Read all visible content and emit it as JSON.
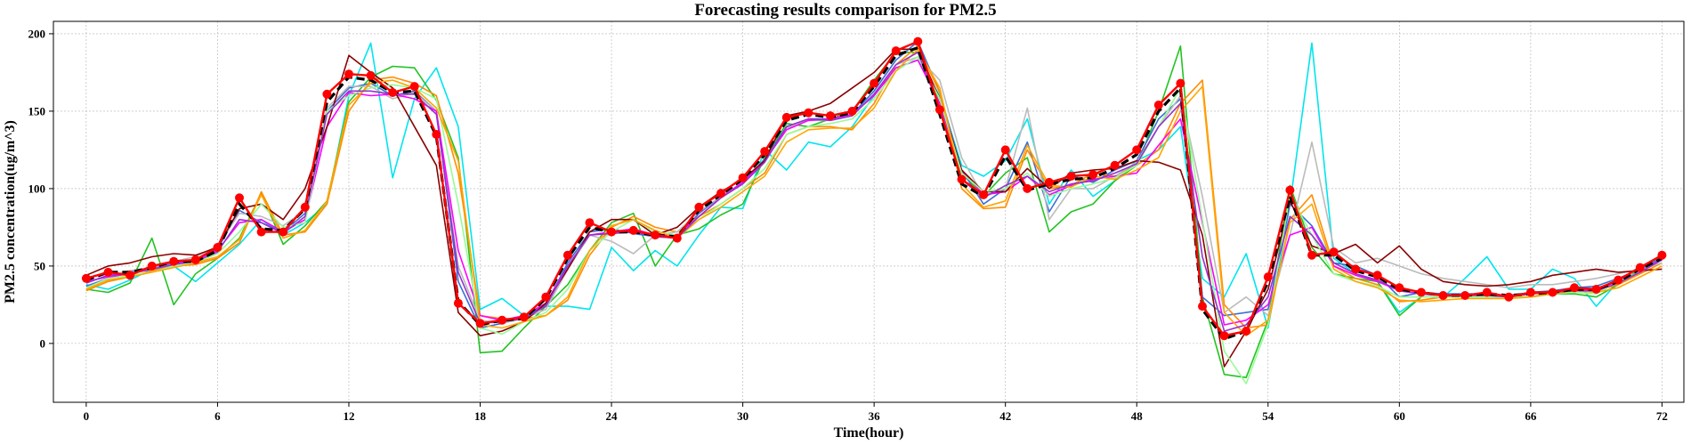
{
  "chart_data": {
    "type": "line",
    "title": "Forecasting results comparison for PM2.5",
    "xlabel": "Time(hour)",
    "ylabel": "PM2.5 concentration(ug/m^3)",
    "xlim": [
      -1.5,
      73
    ],
    "ylim": [
      -38,
      208
    ],
    "xticks": [
      0,
      6,
      12,
      18,
      24,
      30,
      36,
      42,
      48,
      54,
      60,
      66,
      72
    ],
    "yticks": [
      0,
      50,
      100,
      150,
      200
    ],
    "grid": true,
    "legend": "none",
    "x": [
      0,
      1,
      2,
      3,
      4,
      5,
      6,
      7,
      8,
      9,
      10,
      11,
      12,
      13,
      14,
      15,
      16,
      17,
      18,
      19,
      20,
      21,
      22,
      23,
      24,
      25,
      26,
      27,
      28,
      29,
      30,
      31,
      32,
      33,
      34,
      35,
      36,
      37,
      38,
      39,
      40,
      41,
      42,
      43,
      44,
      45,
      46,
      47,
      48,
      49,
      50,
      51,
      52,
      53,
      54,
      55,
      56,
      57,
      58,
      59,
      60,
      61,
      62,
      63,
      64,
      65,
      66,
      67,
      68,
      69,
      70,
      71,
      72
    ],
    "actual": {
      "color": "#ff0000",
      "values": [
        42,
        46,
        44,
        50,
        53,
        54,
        62,
        94,
        72,
        72,
        88,
        161,
        174,
        173,
        162,
        166,
        135,
        26,
        13,
        15,
        17,
        30,
        57,
        78,
        72,
        73,
        70,
        68,
        88,
        97,
        107,
        124,
        146,
        149,
        147,
        150,
        168,
        189,
        195,
        151,
        106,
        96,
        125,
        100,
        104,
        108,
        109,
        115,
        125,
        154,
        168,
        24,
        5,
        8,
        43,
        99,
        57,
        59,
        48,
        44,
        36,
        33,
        31,
        31,
        33,
        30,
        33,
        33,
        36,
        35,
        41,
        49,
        57
      ]
    },
    "series": [
      {
        "color": "#000000",
        "dashed": true,
        "values": [
          41,
          46,
          46,
          49,
          53,
          53,
          60,
          90,
          74,
          73,
          87,
          156,
          172,
          170,
          162,
          163,
          134,
          27,
          12,
          15,
          16,
          29,
          55,
          75,
          72,
          72,
          70,
          69,
          86,
          96,
          106,
          122,
          144,
          148,
          146,
          149,
          166,
          186,
          191,
          148,
          103,
          95,
          121,
          99,
          103,
          106,
          107,
          113,
          122,
          150,
          165,
          22,
          3,
          8,
          40,
          95,
          57,
          57,
          47,
          43,
          35,
          33,
          31,
          31,
          32,
          31,
          32,
          33,
          35,
          35,
          40,
          48,
          55
        ]
      },
      {
        "color": "#00e5ee",
        "values": [
          38,
          35,
          41,
          48,
          50,
          40,
          52,
          64,
          80,
          70,
          78,
          90,
          160,
          194,
          107,
          158,
          178,
          140,
          22,
          29,
          18,
          24,
          24,
          22,
          62,
          47,
          60,
          50,
          70,
          88,
          87,
          125,
          112,
          130,
          127,
          140,
          160,
          178,
          183,
          160,
          115,
          108,
          118,
          145,
          90,
          112,
          95,
          105,
          118,
          125,
          140,
          42,
          30,
          58,
          10,
          90,
          194,
          55,
          45,
          40,
          20,
          30,
          30,
          42,
          56,
          35,
          35,
          48,
          42,
          24,
          40,
          50,
          55
        ]
      },
      {
        "color": "#22c322",
        "values": [
          35,
          33,
          39,
          68,
          25,
          45,
          55,
          68,
          97,
          64,
          76,
          92,
          156,
          172,
          179,
          178,
          157,
          120,
          -6,
          -5,
          10,
          24,
          38,
          60,
          78,
          84,
          50,
          70,
          74,
          83,
          90,
          120,
          142,
          140,
          145,
          150,
          170,
          188,
          188,
          155,
          110,
          95,
          110,
          120,
          72,
          85,
          90,
          105,
          115,
          150,
          192,
          30,
          -20,
          -22,
          15,
          102,
          62,
          45,
          42,
          40,
          18,
          30,
          30,
          30,
          30,
          30,
          30,
          32,
          32,
          30,
          38,
          48,
          55
        ]
      },
      {
        "color": "#3a6fd8",
        "values": [
          37,
          42,
          46,
          49,
          52,
          54,
          61,
          86,
          78,
          72,
          84,
          150,
          165,
          168,
          160,
          163,
          150,
          40,
          10,
          13,
          17,
          25,
          52,
          72,
          74,
          71,
          69,
          68,
          84,
          95,
          104,
          119,
          140,
          145,
          145,
          148,
          163,
          183,
          195,
          162,
          112,
          90,
          100,
          130,
          85,
          108,
          104,
          112,
          118,
          145,
          158,
          30,
          18,
          20,
          22,
          90,
          76,
          52,
          50,
          44,
          30,
          33,
          32,
          32,
          32,
          31,
          33,
          34,
          36,
          37,
          42,
          48,
          55
        ]
      },
      {
        "color": "#ff8c00",
        "values": [
          34,
          40,
          43,
          47,
          50,
          51,
          55,
          65,
          98,
          70,
          72,
          90,
          150,
          170,
          172,
          168,
          160,
          110,
          18,
          16,
          16,
          18,
          28,
          57,
          75,
          82,
          75,
          72,
          82,
          90,
          100,
          110,
          135,
          140,
          140,
          138,
          155,
          180,
          192,
          162,
          100,
          87,
          88,
          125,
          100,
          102,
          110,
          108,
          115,
          125,
          155,
          170,
          25,
          10,
          12,
          80,
          96,
          50,
          42,
          38,
          27,
          28,
          30,
          30,
          30,
          30,
          30,
          33,
          34,
          34,
          38,
          45,
          52
        ]
      },
      {
        "color": "#bbbbbb",
        "values": [
          39,
          44,
          47,
          49,
          53,
          56,
          63,
          84,
          82,
          76,
          86,
          152,
          166,
          166,
          158,
          162,
          150,
          50,
          15,
          13,
          16,
          22,
          48,
          70,
          66,
          58,
          70,
          72,
          85,
          95,
          104,
          118,
          139,
          144,
          144,
          147,
          161,
          180,
          185,
          170,
          120,
          95,
          100,
          152,
          80,
          100,
          100,
          108,
          117,
          140,
          160,
          95,
          20,
          30,
          18,
          70,
          130,
          62,
          52,
          55,
          50,
          45,
          42,
          40,
          38,
          36,
          38,
          38,
          40,
          42,
          45,
          48,
          52
        ]
      },
      {
        "color": "#ff00ff",
        "values": [
          40,
          43,
          45,
          48,
          51,
          54,
          60,
          78,
          80,
          72,
          80,
          140,
          162,
          160,
          161,
          158,
          150,
          60,
          18,
          15,
          18,
          26,
          50,
          70,
          72,
          74,
          70,
          70,
          82,
          94,
          104,
          118,
          138,
          144,
          145,
          148,
          160,
          178,
          183,
          155,
          112,
          96,
          98,
          108,
          96,
          102,
          106,
          108,
          110,
          128,
          145,
          78,
          12,
          15,
          25,
          70,
          75,
          50,
          44,
          40,
          34,
          32,
          31,
          31,
          32,
          31,
          32,
          33,
          34,
          35,
          40,
          46,
          55
        ]
      },
      {
        "color": "#8b0000",
        "values": [
          44,
          50,
          52,
          56,
          58,
          57,
          62,
          87,
          90,
          80,
          100,
          140,
          186,
          175,
          165,
          140,
          115,
          20,
          5,
          8,
          14,
          26,
          48,
          72,
          80,
          80,
          70,
          75,
          88,
          98,
          106,
          118,
          147,
          150,
          155,
          165,
          175,
          190,
          190,
          158,
          112,
          98,
          98,
          113,
          100,
          110,
          112,
          113,
          118,
          117,
          112,
          70,
          -15,
          8,
          35,
          92,
          63,
          58,
          64,
          52,
          63,
          48,
          40,
          38,
          37,
          38,
          40,
          44,
          46,
          48,
          46,
          47,
          48
        ]
      },
      {
        "color": "#98fb98",
        "values": [
          36,
          42,
          44,
          46,
          50,
          52,
          58,
          72,
          90,
          75,
          78,
          150,
          160,
          165,
          167,
          165,
          158,
          90,
          10,
          6,
          14,
          20,
          35,
          60,
          72,
          80,
          72,
          70,
          80,
          90,
          100,
          113,
          135,
          140,
          142,
          145,
          158,
          176,
          185,
          158,
          110,
          98,
          100,
          110,
          95,
          100,
          103,
          107,
          115,
          140,
          165,
          80,
          -5,
          -26,
          12,
          96,
          70,
          45,
          40,
          37,
          30,
          30,
          30,
          30,
          30,
          30,
          30,
          32,
          33,
          32,
          40,
          46,
          54
        ]
      },
      {
        "color": "#ffa500",
        "values": [
          35,
          41,
          43,
          46,
          49,
          52,
          56,
          67,
          96,
          68,
          73,
          92,
          154,
          168,
          170,
          165,
          152,
          118,
          12,
          10,
          14,
          18,
          30,
          60,
          76,
          80,
          73,
          68,
          80,
          88,
          98,
          108,
          130,
          138,
          139,
          139,
          152,
          176,
          190,
          165,
          103,
          88,
          92,
          128,
          102,
          101,
          108,
          106,
          112,
          120,
          150,
          166,
          20,
          5,
          15,
          78,
          90,
          48,
          40,
          36,
          28,
          27,
          28,
          29,
          29,
          29,
          30,
          32,
          34,
          33,
          36,
          43,
          50
        ]
      },
      {
        "color": "#9932cc",
        "values": [
          39,
          44,
          45,
          48,
          51,
          53,
          59,
          80,
          78,
          71,
          82,
          148,
          163,
          163,
          161,
          161,
          148,
          46,
          13,
          14,
          16,
          24,
          50,
          70,
          71,
          72,
          69,
          68,
          82,
          94,
          103,
          117,
          140,
          145,
          144,
          147,
          161,
          180,
          188,
          152,
          106,
          94,
          102,
          108,
          98,
          103,
          105,
          110,
          116,
          140,
          155,
          56,
          8,
          12,
          30,
          82,
          70,
          52,
          45,
          41,
          34,
          32,
          31,
          31,
          31,
          30,
          32,
          33,
          34,
          34,
          39,
          46,
          54
        ]
      }
    ]
  }
}
